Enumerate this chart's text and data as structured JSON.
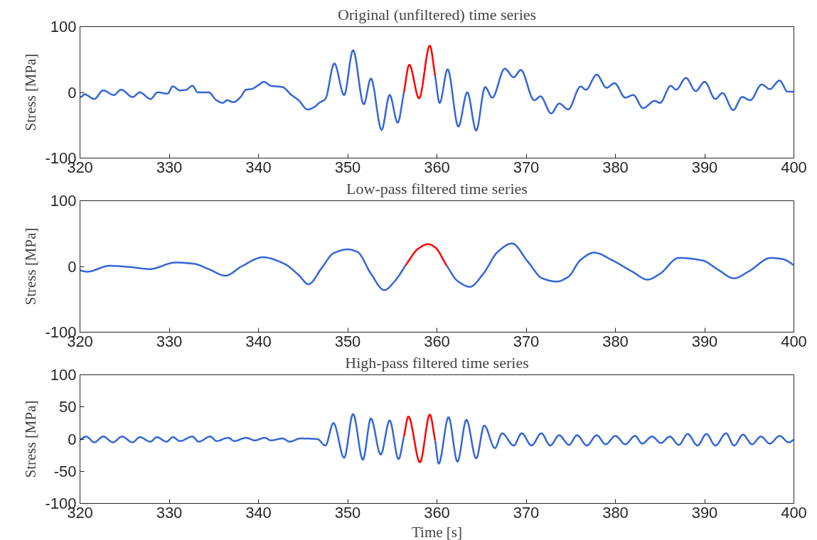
{
  "chart_data": [
    {
      "type": "line",
      "title": "Original (unfiltered) time series",
      "ylabel": "Stress [MPa]",
      "xlim": [
        320,
        400
      ],
      "xticks": [
        320,
        330,
        340,
        350,
        360,
        370,
        380,
        390,
        400
      ],
      "ylim": [
        -100,
        100
      ],
      "yticks": [
        -100,
        0,
        100
      ],
      "grid": false,
      "line_style": "solid",
      "marker": "none",
      "series": [
        {
          "color": "#3366d6",
          "x": [
            320,
            320.1,
            320.5,
            321.6,
            322.6,
            323.8,
            324.6,
            325.9,
            326.7,
            327.9,
            328.7,
            329.8,
            330.4,
            331.2,
            331.9,
            332.6,
            333.2,
            334.4,
            335.3,
            336.0,
            336.5,
            337.2,
            338.0,
            338.6,
            339.2,
            340.0,
            340.6,
            341.4,
            342.7,
            343.7,
            344.5,
            345.5,
            346.3,
            346.8,
            347.5,
            348.5,
            349.6,
            350.6,
            351.8,
            352.6,
            353.8,
            354.7,
            355.6,
            356.3,
            358.0,
            359.8,
            360.3,
            361.2,
            362.4,
            363.4,
            364.4,
            365.4,
            366.2,
            367.6,
            368.6,
            369.4,
            370.9,
            371.6,
            372.8,
            373.7,
            374.7,
            376.1,
            376.7,
            377.9,
            379.0,
            379.9,
            381.1,
            382.0,
            383.1,
            384.4,
            385.0,
            386.2,
            386.8,
            387.9,
            389.0,
            390.0,
            391.2,
            392.0,
            393.2,
            394.2,
            395.1,
            396.4,
            397.3,
            398.4,
            399.3,
            400
          ],
          "values": [
            -6,
            -7,
            -3,
            -10,
            3,
            -4,
            4,
            -7,
            0,
            -10,
            0,
            -2,
            9,
            3,
            4,
            10,
            0,
            0,
            -12,
            -16,
            -12,
            -15,
            -7,
            4,
            5,
            11,
            16,
            10,
            8,
            -4,
            -12,
            -26,
            -22,
            -16,
            -10,
            44,
            -4,
            64,
            -18,
            21,
            -57,
            -4,
            -46,
            0,
            null,
            25,
            -16,
            35,
            -52,
            0,
            -58,
            8,
            -8,
            36,
            23,
            34,
            -12,
            -6,
            -32,
            -17,
            -26,
            9,
            4,
            27,
            7,
            14,
            -8,
            -4,
            -24,
            -13,
            -16,
            10,
            4,
            22,
            2,
            16,
            -10,
            -1,
            -27,
            -7,
            -12,
            12,
            5,
            18,
            1,
            1
          ]
        },
        {
          "color": "#ff0000",
          "x": [
            356.3,
            356.9,
            358.0,
            359.2,
            359.8
          ],
          "values": [
            0,
            42,
            -9,
            71,
            25
          ]
        }
      ]
    },
    {
      "type": "line",
      "title": "Low-pass filtered time series",
      "ylabel": "Stress [MPa]",
      "xlim": [
        320,
        400
      ],
      "xticks": [
        320,
        330,
        340,
        350,
        360,
        370,
        380,
        390,
        400
      ],
      "ylim": [
        -100,
        100
      ],
      "yticks": [
        -100,
        0,
        100
      ],
      "grid": false,
      "line_style": "solid",
      "marker": "none",
      "series": [
        {
          "color": "#3366d6",
          "x": [
            320,
            320.8,
            323.3,
            325.7,
            327.8,
            330.7,
            332.8,
            334.4,
            336.3,
            338.1,
            340.5,
            342.9,
            344.5,
            345.6,
            347.1,
            348.4,
            350.0,
            351.1,
            352.6,
            354.1,
            355.3,
            356.5,
            358.8,
            361.1,
            362.3,
            363.7,
            365.2,
            366.8,
            368.4,
            370.2,
            371.8,
            373.4,
            374.7,
            376.1,
            377.6,
            379.7,
            381.9,
            383.6,
            385.0,
            387.1,
            389.8,
            391.4,
            393.3,
            395.0,
            397.4,
            398.8,
            400
          ],
          "values": [
            -6,
            -8,
            1,
            -1,
            -4,
            6,
            4,
            -4,
            -14,
            0,
            14,
            4,
            -13,
            -27,
            -2,
            20,
            26,
            22,
            -11,
            -36,
            -22,
            2,
            null,
            1,
            -22,
            -31,
            -11,
            22,
            35,
            7,
            -18,
            -23,
            -16,
            10,
            21,
            9,
            -8,
            -20,
            -11,
            13,
            9,
            -4,
            -18,
            -7,
            13,
            11,
            2
          ]
        },
        {
          "color": "#ff0000",
          "x": [
            356.5,
            357.9,
            359.0,
            359.8,
            361.1
          ],
          "values": [
            2,
            27,
            34,
            29,
            1
          ]
        }
      ]
    },
    {
      "type": "line",
      "title": "High-pass filtered time series",
      "xlabel": "Time [s]",
      "ylabel": "Stress [MPa]",
      "xlim": [
        320,
        400
      ],
      "xticks": [
        320,
        330,
        340,
        350,
        360,
        370,
        380,
        390,
        400
      ],
      "ylim": [
        -100,
        100
      ],
      "yticks": [
        -100,
        -50,
        0,
        50,
        100
      ],
      "grid": false,
      "line_style": "solid",
      "marker": "none",
      "series": [
        {
          "color": "#3366d6",
          "x": [
            320,
            320.7,
            321.6,
            322.6,
            323.7,
            324.7,
            325.9,
            326.7,
            327.9,
            328.6,
            329.7,
            330.4,
            331.2,
            332.6,
            333.3,
            334.6,
            335.3,
            336.6,
            337.3,
            338.6,
            339.6,
            340.7,
            341.4,
            342.7,
            343.5,
            344.7,
            346.6,
            347.5,
            348.4,
            349.6,
            350.6,
            351.7,
            352.6,
            353.7,
            354.7,
            355.7,
            356.3,
            358.1,
            359.8,
            360.2,
            361.3,
            362.3,
            363.3,
            364.4,
            365.3,
            366.5,
            367.3,
            368.6,
            369.5,
            370.6,
            371.7,
            372.7,
            373.7,
            374.8,
            375.7,
            376.8,
            377.9,
            378.9,
            380.0,
            381.1,
            382.2,
            383.0,
            384.1,
            385.1,
            386.1,
            387.1,
            388.1,
            389.2,
            390.2,
            391.2,
            392.4,
            393.3,
            394.3,
            395.3,
            396.3,
            397.3,
            398.4,
            399.4,
            400
          ],
          "values": [
            -1,
            4,
            -5,
            4,
            -5,
            4,
            -5,
            3,
            -4,
            3,
            -4,
            3,
            -3,
            4,
            -4,
            4,
            -3,
            2,
            -3,
            2,
            -2,
            2,
            -2,
            1,
            -4,
            1,
            0,
            -10,
            25,
            -29,
            39,
            -32,
            32,
            -24,
            29,
            -31,
            4,
            null,
            -2,
            -38,
            34,
            -35,
            30,
            -30,
            21,
            -14,
            9,
            -10,
            9,
            -10,
            9,
            -10,
            6,
            -9,
            6,
            -10,
            6,
            -8,
            5,
            -8,
            5,
            -7,
            4,
            -6,
            4,
            -9,
            8,
            -10,
            8,
            -10,
            9,
            -10,
            7,
            -8,
            4,
            -7,
            5,
            -5,
            -1
          ]
        },
        {
          "color": "#ff0000",
          "x": [
            356.3,
            356.8,
            358.1,
            359.2,
            359.8
          ],
          "values": [
            4,
            35,
            -36,
            38,
            -2
          ]
        }
      ]
    }
  ]
}
